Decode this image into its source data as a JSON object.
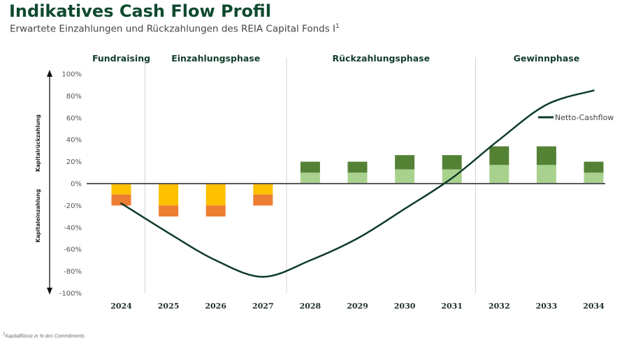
{
  "header": {
    "title": "Indikatives Cash Flow Profil",
    "subtitle": "Erwartete Einzahlungen und Rückzahlungen des REIA Capital Fonds I",
    "subtitle_sup": "1"
  },
  "footnote": {
    "sup": "1",
    "text": "Kapitalflüsse in % des Commitments"
  },
  "chart_data": {
    "type": "bar",
    "categories": [
      "2024",
      "2025",
      "2026",
      "2027",
      "2028",
      "2029",
      "2030",
      "2031",
      "2032",
      "2033",
      "2034"
    ],
    "series": [
      {
        "color": "#ffc000",
        "values": [
          -10,
          -20,
          -20,
          -10,
          0,
          0,
          0,
          0,
          0,
          0,
          0
        ]
      },
      {
        "color": "#ed7d31",
        "values": [
          -10,
          -10,
          -10,
          -10,
          0,
          0,
          0,
          0,
          0,
          0,
          0
        ]
      },
      {
        "color": "#a9d18e",
        "values": [
          0,
          0,
          0,
          0,
          10,
          10,
          13,
          13,
          17,
          17,
          10
        ]
      },
      {
        "color": "#548235",
        "values": [
          0,
          0,
          0,
          0,
          10,
          10,
          13,
          13,
          17,
          17,
          10
        ]
      }
    ],
    "line": {
      "name": "Netto-Cashflow",
      "color": "#0e3b2a",
      "points": [
        {
          "x": 2024,
          "y": -18
        },
        {
          "x": 2025,
          "y": -45
        },
        {
          "x": 2026,
          "y": -70
        },
        {
          "x": 2027,
          "y": -85
        },
        {
          "x": 2028,
          "y": -70
        },
        {
          "x": 2029,
          "y": -50
        },
        {
          "x": 2030,
          "y": -23
        },
        {
          "x": 2031,
          "y": 5
        },
        {
          "x": 2032,
          "y": 40
        },
        {
          "x": 2033,
          "y": 72
        },
        {
          "x": 2034,
          "y": 85
        }
      ]
    },
    "ylim": [
      -100,
      100
    ],
    "yticks": [
      "100%",
      "80%",
      "60%",
      "40%",
      "20%",
      "0%",
      "-20%",
      "-40%",
      "-60%",
      "-80%",
      "-100%"
    ],
    "ylabel_top": "Kapitalrückzahlung",
    "ylabel_bottom": "Kapitaleinzahlung",
    "phases": [
      {
        "label": "Fundraising",
        "from": "2024",
        "to": "2024"
      },
      {
        "label": "Einzahlungsphase",
        "from": "2025",
        "to": "2027"
      },
      {
        "label": "Rückzahlungsphase",
        "from": "2028",
        "to": "2031"
      },
      {
        "label": "Gewinnphase",
        "from": "2032",
        "to": "2034"
      }
    ],
    "legend_position": "right",
    "grid": false
  }
}
